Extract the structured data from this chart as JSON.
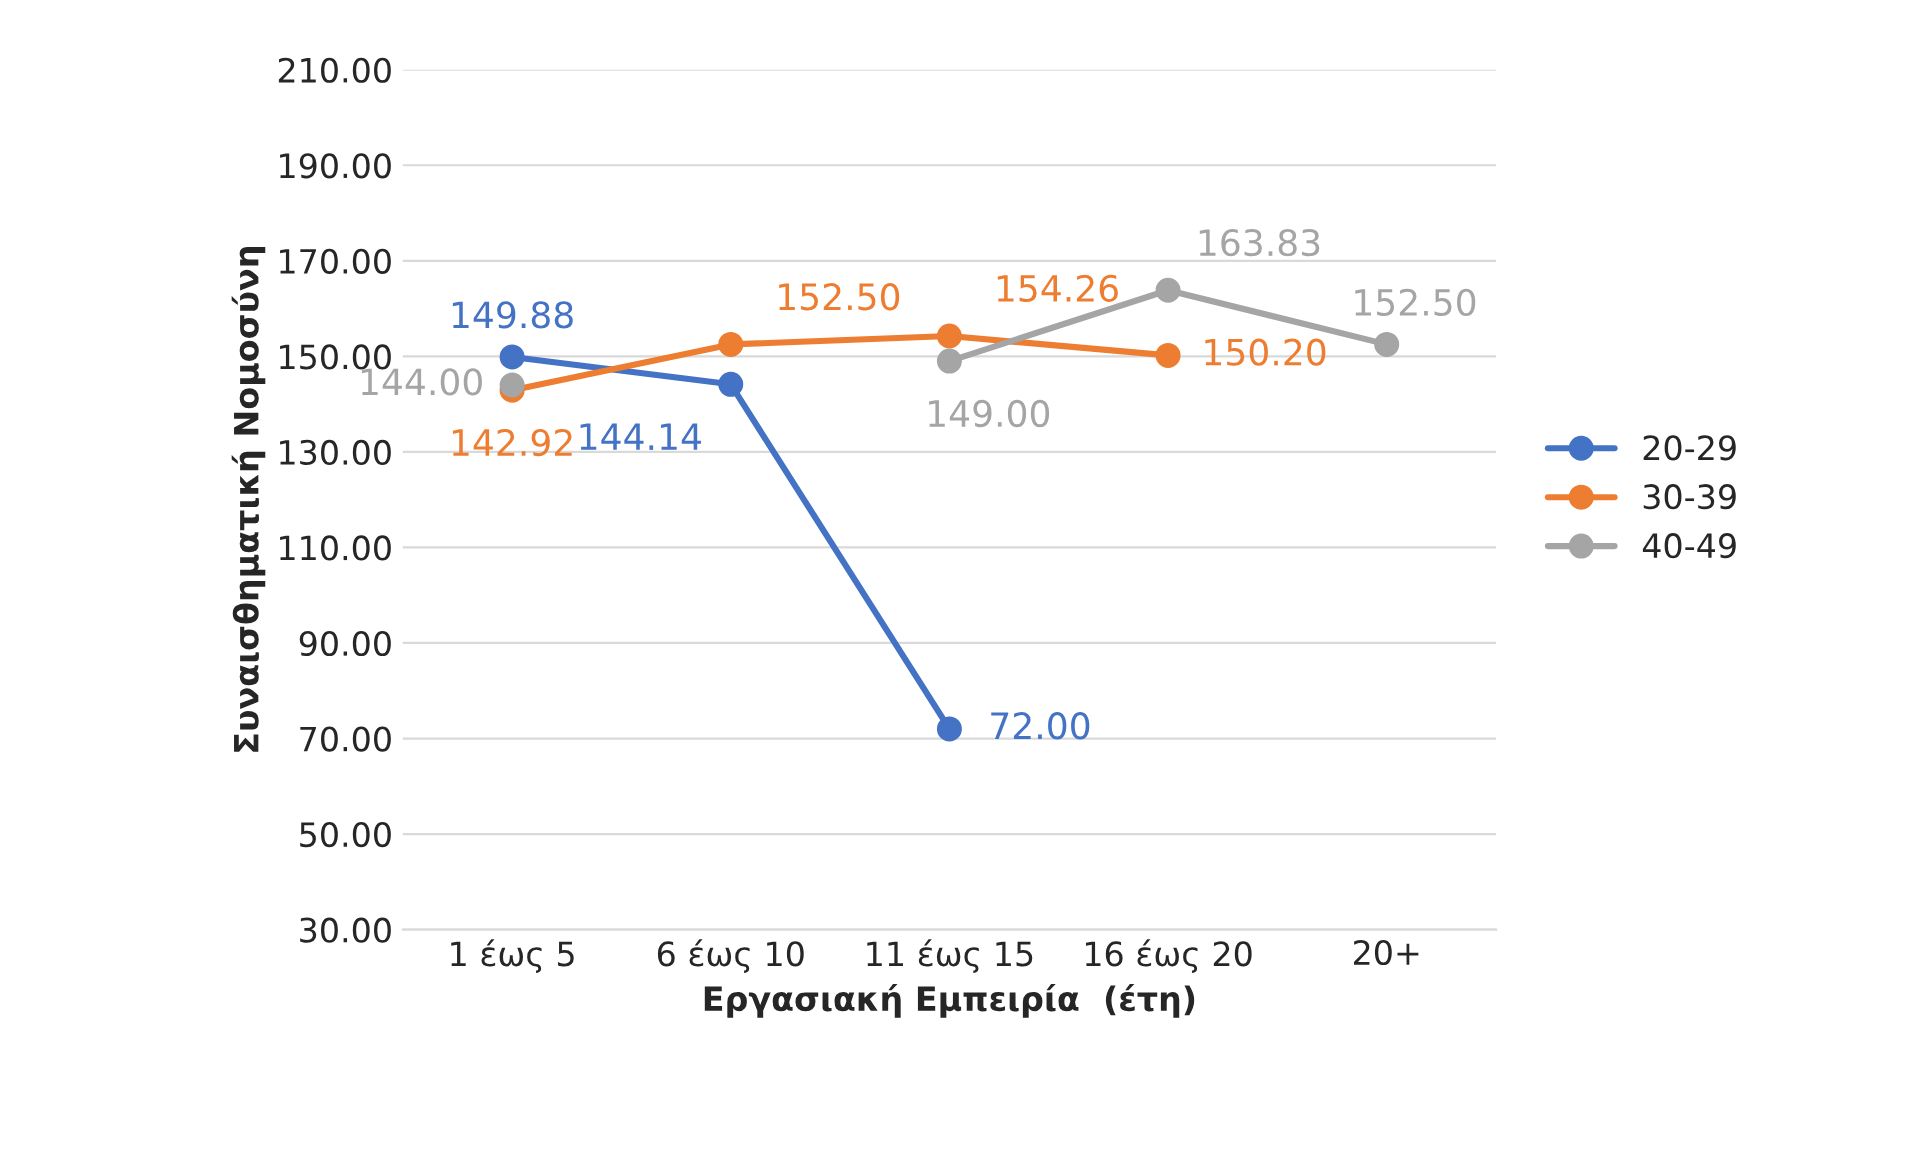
{
  "chart_data": {
    "type": "line",
    "xlabel": "Εργασιακή Εμπειρία  (έτη)",
    "ylabel": "Συναισθηματική Νομοσύνη",
    "categories": [
      "1 έως 5",
      "6 έως 10",
      "11 έως 15",
      "16 έως 20",
      "20+"
    ],
    "series": [
      {
        "name": "20-29",
        "color": "#4472c4",
        "values": [
          149.88,
          144.14,
          72.0,
          null,
          null
        ],
        "value_labels": [
          "149.88",
          "144.14",
          "72.00",
          null,
          null
        ]
      },
      {
        "name": "30-39",
        "color": "#ed7d31",
        "values": [
          142.92,
          152.5,
          154.26,
          150.2,
          null
        ],
        "value_labels": [
          "142.92",
          "152.50",
          "154.26",
          "150.20",
          null
        ]
      },
      {
        "name": "40-49",
        "color": "#a5a5a5",
        "values": [
          144.0,
          null,
          149.0,
          163.83,
          152.5
        ],
        "value_labels": [
          "144.00",
          null,
          "149.00",
          "163.83",
          "152.50"
        ]
      }
    ],
    "ylim": [
      30,
      210
    ],
    "yticks": [
      {
        "value": 30,
        "label": "30.00"
      },
      {
        "value": 50,
        "label": "50.00"
      },
      {
        "value": 70,
        "label": "70.00"
      },
      {
        "value": 90,
        "label": "90.00"
      },
      {
        "value": 110,
        "label": "110.00"
      },
      {
        "value": 130,
        "label": "130.00"
      },
      {
        "value": 150,
        "label": "150.00"
      },
      {
        "value": 170,
        "label": "170.00"
      },
      {
        "value": 190,
        "label": "190.00"
      },
      {
        "value": 210,
        "label": "210.00"
      }
    ],
    "grid": "y",
    "legend": "right",
    "marker": "circle",
    "line_style": "solid"
  }
}
